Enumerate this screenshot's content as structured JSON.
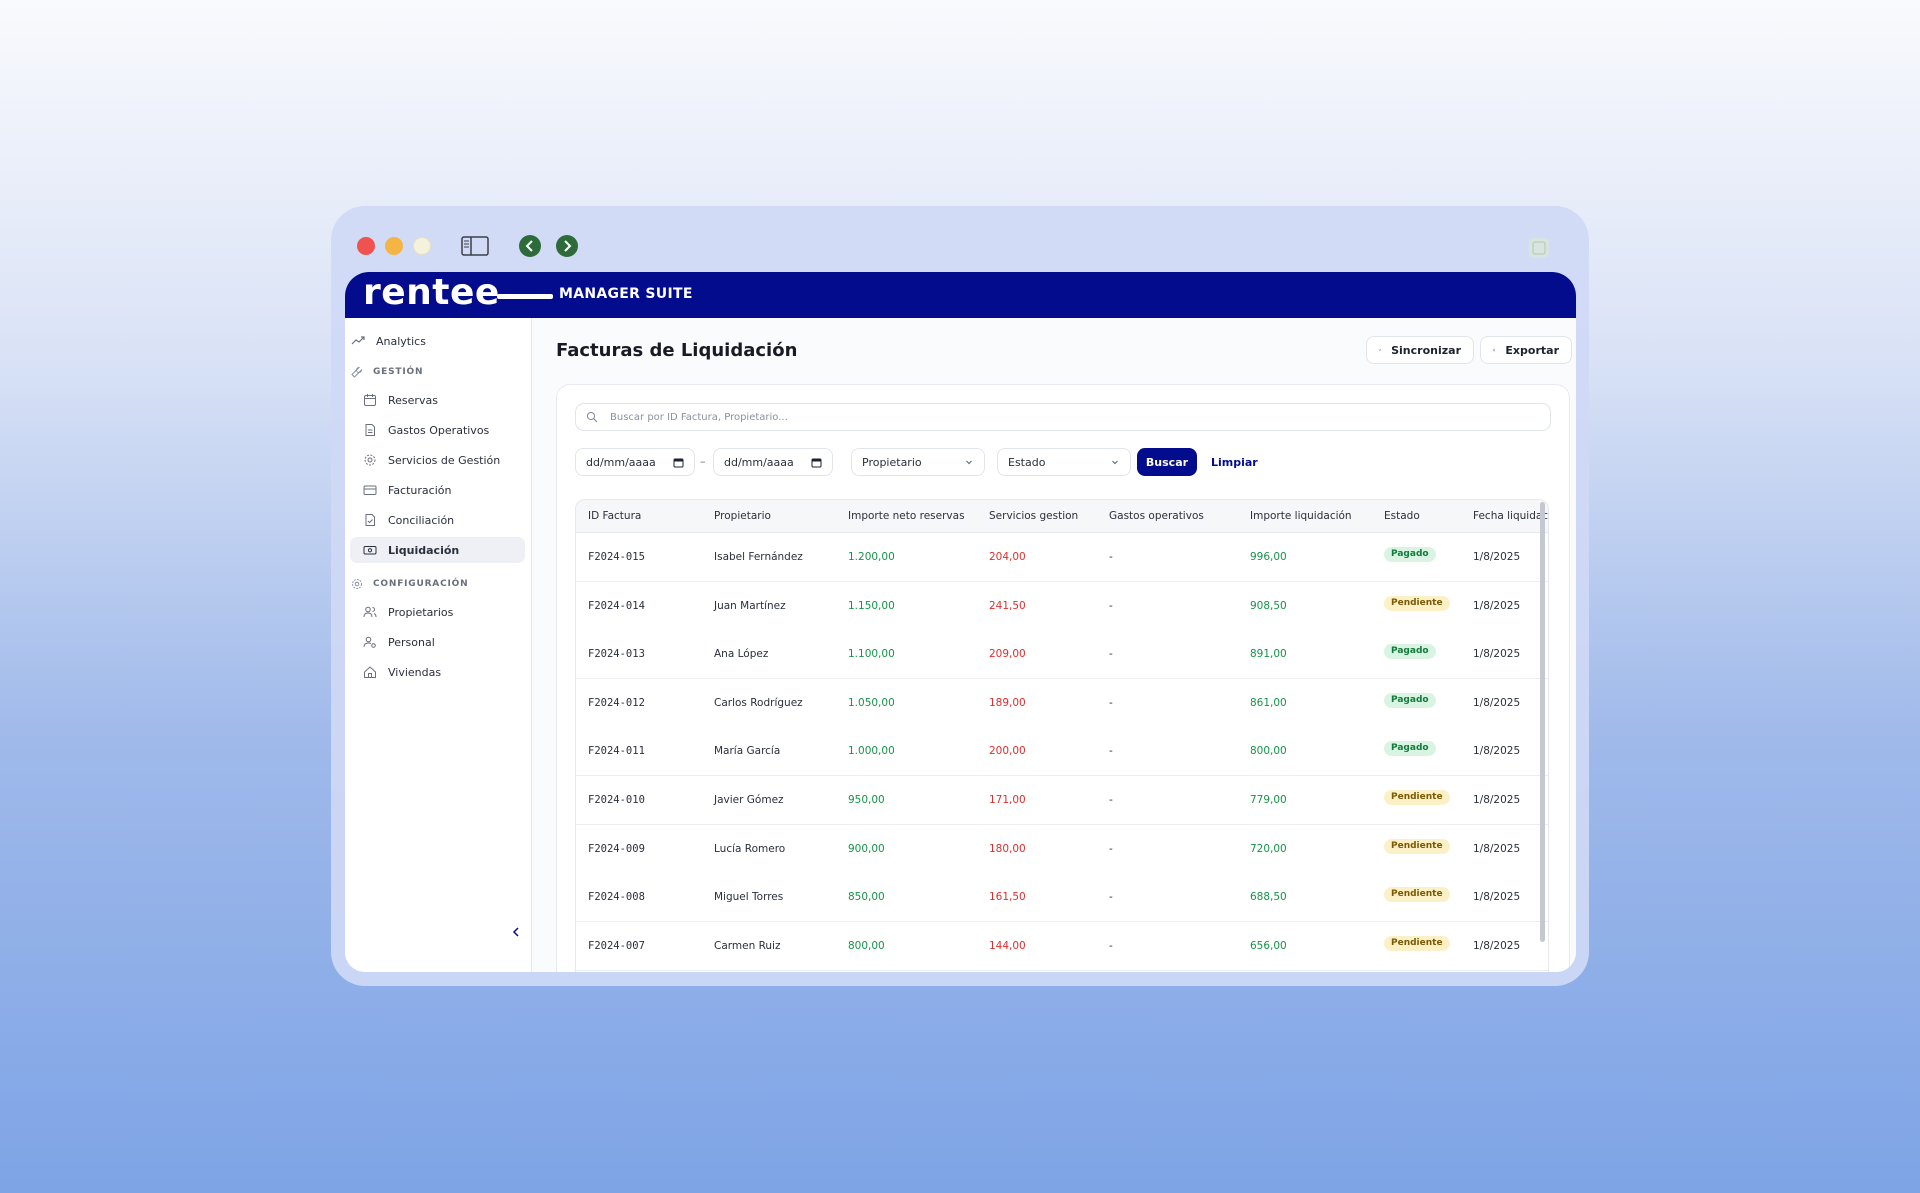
{
  "app": {
    "logo": "rentee",
    "suite": "MANAGER SUITE"
  },
  "sidebar": {
    "analytics": "Analytics",
    "section_gestion": "GESTIÓN",
    "items": [
      {
        "label": "Reservas",
        "icon": "calendar-icon"
      },
      {
        "label": "Gastos Operativos",
        "icon": "document-icon"
      },
      {
        "label": "Servicios de Gestión",
        "icon": "gear-icon"
      },
      {
        "label": "Facturación",
        "icon": "credit-card-icon"
      },
      {
        "label": "Conciliación",
        "icon": "file-check-icon"
      },
      {
        "label": "Liquidación",
        "icon": "cash-icon",
        "active": true
      }
    ],
    "section_config": "CONFIGURACIÓN",
    "config_items": [
      {
        "label": "Propietarios",
        "icon": "users-icon"
      },
      {
        "label": "Personal",
        "icon": "user-settings-icon"
      },
      {
        "label": "Viviendas",
        "icon": "home-icon"
      }
    ]
  },
  "header": {
    "title": "Facturas de Liquidación",
    "sync_label": "Sincronizar",
    "export_label": "Exportar"
  },
  "filters": {
    "search_placeholder": "Buscar por ID Factura, Propietario...",
    "date_from": "dd/mm/aaaa",
    "date_to": "dd/mm/aaaa",
    "date_separator": "–",
    "owner": "Propietario",
    "state": "Estado",
    "search_button": "Buscar",
    "clear_button": "Limpiar"
  },
  "table": {
    "columns": [
      "ID Factura",
      "Propietario",
      "Importe neto reservas",
      "Servicios gestion",
      "Gastos operativos",
      "Importe liquidación",
      "Estado",
      "Fecha liquidación"
    ],
    "rows": [
      {
        "id": "F2024-015",
        "owner": "Isabel Fernández",
        "net": "1.200,00",
        "services": "204,00",
        "expenses": "-",
        "settlement": "996,00",
        "status": "Pagado",
        "date": "1/8/2025"
      },
      {
        "id": "F2024-014",
        "owner": "Juan Martínez",
        "net": "1.150,00",
        "services": "241,50",
        "expenses": "-",
        "settlement": "908,50",
        "status": "Pendiente",
        "date": "1/8/2025"
      },
      {
        "id": "F2024-013",
        "owner": "Ana López",
        "net": "1.100,00",
        "services": "209,00",
        "expenses": "-",
        "settlement": "891,00",
        "status": "Pagado",
        "date": "1/8/2025"
      },
      {
        "id": "F2024-012",
        "owner": "Carlos Rodríguez",
        "net": "1.050,00",
        "services": "189,00",
        "expenses": "-",
        "settlement": "861,00",
        "status": "Pagado",
        "date": "1/8/2025"
      },
      {
        "id": "F2024-011",
        "owner": "María García",
        "net": "1.000,00",
        "services": "200,00",
        "expenses": "-",
        "settlement": "800,00",
        "status": "Pagado",
        "date": "1/8/2025"
      },
      {
        "id": "F2024-010",
        "owner": "Javier Gómez",
        "net": "950,00",
        "services": "171,00",
        "expenses": "-",
        "settlement": "779,00",
        "status": "Pendiente",
        "date": "1/8/2025"
      },
      {
        "id": "F2024-009",
        "owner": "Lucía Romero",
        "net": "900,00",
        "services": "180,00",
        "expenses": "-",
        "settlement": "720,00",
        "status": "Pendiente",
        "date": "1/8/2025"
      },
      {
        "id": "F2024-008",
        "owner": "Miguel Torres",
        "net": "850,00",
        "services": "161,50",
        "expenses": "-",
        "settlement": "688,50",
        "status": "Pendiente",
        "date": "1/8/2025"
      },
      {
        "id": "F2024-007",
        "owner": "Carmen Ruiz",
        "net": "800,00",
        "services": "144,00",
        "expenses": "-",
        "settlement": "656,00",
        "status": "Pendiente",
        "date": "1/8/2025"
      }
    ]
  },
  "colors": {
    "brand": "#020c8c",
    "positive": "#159447",
    "negative": "#e02d2d"
  }
}
